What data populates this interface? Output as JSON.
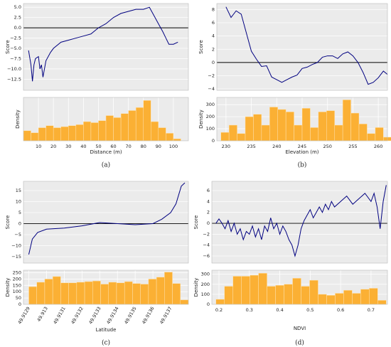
{
  "chart_data": [
    {
      "type": "line",
      "ylabel": "Score",
      "color": "#000080",
      "hline": 0,
      "grid": true,
      "xlim": [
        0,
        110
      ],
      "ylim": [
        -15.2,
        5.9
      ],
      "yticks": [
        {
          "value": -12.5,
          "label": "−12.5"
        },
        {
          "value": -10,
          "label": "−10.0"
        },
        {
          "value": -7.5,
          "label": "−7.5"
        },
        {
          "value": -5,
          "label": "−5.0"
        },
        {
          "value": -2.5,
          "label": "−2.5"
        },
        {
          "value": 0,
          "label": "0.0"
        },
        {
          "value": 2.5,
          "label": "2.5"
        },
        {
          "value": 5,
          "label": "5.0"
        }
      ],
      "x": [
        3.4,
        5,
        6,
        7,
        8,
        10,
        11,
        12,
        13,
        15,
        18,
        20,
        25,
        30,
        35,
        40,
        45,
        50,
        55,
        60,
        65,
        70,
        75,
        80,
        84,
        87,
        90,
        93,
        95,
        97,
        100,
        103
      ],
      "values": [
        -5.5,
        -9,
        -13,
        -9,
        -7.5,
        -7,
        -10,
        -9,
        -12,
        -8,
        -6,
        -5,
        -3.5,
        -3,
        -2.5,
        -2,
        -1.5,
        0,
        1,
        2.5,
        3.5,
        4,
        4.5,
        4.5,
        5,
        3,
        1,
        -1,
        -2.5,
        -4,
        -4,
        -3.5
      ]
    },
    {
      "type": "histogram",
      "ylabel": "Density",
      "xlabel": "Distance (m)",
      "caption": "(a)",
      "color": "#fbb034",
      "grid": true,
      "xlim": [
        0,
        110
      ],
      "ylim": [
        0,
        430
      ],
      "xticks": [
        10,
        20,
        30,
        40,
        50,
        60,
        70,
        80,
        90,
        100
      ],
      "bins": [
        0,
        5,
        10,
        15,
        20,
        25,
        30,
        35,
        40,
        45,
        50,
        55,
        60,
        65,
        70,
        75,
        80,
        85,
        90,
        95,
        100,
        105
      ],
      "values": [
        100,
        80,
        130,
        150,
        130,
        140,
        150,
        160,
        190,
        180,
        200,
        250,
        230,
        270,
        300,
        330,
        400,
        190,
        130,
        75,
        20
      ]
    },
    {
      "type": "line",
      "ylabel": "Score",
      "color": "#000080",
      "hline": 0,
      "grid": true,
      "xlim": [
        228.2,
        261.8
      ],
      "ylim": [
        -4.2,
        8.9
      ],
      "yticks": [
        {
          "value": -4,
          "label": "−4"
        },
        {
          "value": -2,
          "label": "−2"
        },
        0,
        2,
        4,
        6,
        8
      ],
      "x": [
        230,
        231,
        232,
        233,
        234,
        235,
        236,
        237,
        238,
        239,
        240,
        241,
        242,
        243,
        244,
        245,
        246,
        247,
        248,
        249,
        250,
        251,
        252,
        253,
        254,
        255,
        256,
        257,
        258,
        259,
        260,
        261,
        261.8
      ],
      "values": [
        8.4,
        6.8,
        7.8,
        7.3,
        4.5,
        1.7,
        0.5,
        -0.6,
        -0.5,
        -2.2,
        -2.6,
        -3,
        -2.6,
        -2.2,
        -1.9,
        -0.9,
        -0.7,
        -0.3,
        0,
        0.8,
        1,
        1,
        0.6,
        1.3,
        1.6,
        1,
        0,
        -1.5,
        -3.3,
        -3,
        -2.3,
        -1.3,
        -1.8
      ]
    },
    {
      "type": "histogram",
      "ylabel": "Density",
      "xlabel": "Elevation (m)",
      "caption": "(b)",
      "color": "#fbb034",
      "grid": true,
      "xlim": [
        228.2,
        261.8
      ],
      "ylim": [
        0,
        360
      ],
      "xticks": [
        230,
        235,
        240,
        245,
        250,
        255,
        260
      ],
      "yticks": [
        0,
        100,
        200,
        300
      ],
      "bins": [
        229,
        230.6,
        232.2,
        233.8,
        235.4,
        237,
        238.6,
        240.2,
        241.8,
        243.4,
        245,
        246.6,
        248.2,
        249.8,
        251.4,
        253,
        254.6,
        256.2,
        257.8,
        259.4,
        261,
        262.6
      ],
      "values": [
        70,
        130,
        60,
        200,
        220,
        130,
        280,
        260,
        240,
        130,
        270,
        110,
        240,
        250,
        130,
        340,
        230,
        140,
        60,
        110,
        30
      ]
    },
    {
      "type": "line",
      "ylabel": "Score",
      "color": "#000080",
      "hline": 0,
      "grid": true,
      "xlim": [
        49.91287,
        49.9138
      ],
      "ylim": [
        -17.9,
        19.2
      ],
      "yticks": [
        {
          "value": -15,
          "label": "−15"
        },
        {
          "value": -10,
          "label": "−10"
        },
        {
          "value": -5,
          "label": "−5"
        },
        0,
        5,
        10,
        15
      ],
      "x": [
        49.9129,
        49.91292,
        49.91295,
        49.913,
        49.9131,
        49.9132,
        49.9133,
        49.9134,
        49.9135,
        49.9136,
        49.91365,
        49.9137,
        49.91373,
        49.91376,
        49.91378
      ],
      "values": [
        -14,
        -7,
        -4,
        -2.5,
        -2,
        -1,
        0.5,
        0,
        -0.5,
        0,
        2,
        5,
        9,
        17,
        18.5
      ]
    },
    {
      "type": "histogram",
      "ylabel": "Density",
      "xlabel": "Latitude",
      "caption": "(c)",
      "color": "#fbb034",
      "grid": true,
      "xtick_rotation": 60,
      "xlim": [
        49.91287,
        49.9138
      ],
      "ylim": [
        0,
        270
      ],
      "xticks": [
        49.9129,
        49.913,
        49.9131,
        49.9132,
        49.9133,
        49.9134,
        49.9135,
        49.9136,
        49.9137
      ],
      "yticks": [
        0,
        50,
        100,
        150,
        200,
        250
      ],
      "bins": [
        49.9129,
        49.912945,
        49.91299,
        49.913035,
        49.91308,
        49.913125,
        49.91317,
        49.913215,
        49.91326,
        49.913305,
        49.91335,
        49.913395,
        49.91344,
        49.913485,
        49.91353,
        49.913575,
        49.91362,
        49.913665,
        49.91371,
        49.913755,
        49.9138
      ],
      "values": [
        140,
        175,
        200,
        220,
        170,
        170,
        175,
        180,
        185,
        160,
        175,
        170,
        180,
        165,
        160,
        200,
        215,
        255,
        165,
        35
      ]
    },
    {
      "type": "line",
      "ylabel": "Score",
      "color": "#000080",
      "hline": 0,
      "grid": true,
      "xlim": [
        0.1766,
        0.754
      ],
      "ylim": [
        -7.3,
        7.7
      ],
      "yticks": [
        {
          "value": -6,
          "label": "−6"
        },
        {
          "value": -4,
          "label": "−4"
        },
        {
          "value": -2,
          "label": "−2"
        },
        0,
        2,
        4,
        6
      ],
      "x": [
        0.19,
        0.2,
        0.21,
        0.22,
        0.23,
        0.24,
        0.25,
        0.26,
        0.27,
        0.28,
        0.29,
        0.3,
        0.31,
        0.32,
        0.33,
        0.34,
        0.35,
        0.36,
        0.37,
        0.38,
        0.39,
        0.4,
        0.41,
        0.42,
        0.43,
        0.44,
        0.45,
        0.46,
        0.47,
        0.48,
        0.49,
        0.5,
        0.51,
        0.52,
        0.53,
        0.54,
        0.55,
        0.56,
        0.57,
        0.58,
        0.6,
        0.62,
        0.64,
        0.66,
        0.68,
        0.7,
        0.71,
        0.72,
        0.73,
        0.74,
        0.75
      ],
      "values": [
        0,
        0.8,
        0,
        -1,
        0.5,
        -1.5,
        0,
        -2,
        -1,
        -3,
        -1.5,
        -2,
        -0.5,
        -2.5,
        -1,
        -3,
        -0.5,
        -1.5,
        1,
        -1,
        0,
        -2,
        -0.5,
        -1.5,
        -3,
        -4,
        -6,
        -4,
        -1,
        0.5,
        1.5,
        2.5,
        1,
        2,
        3,
        2,
        3.5,
        2.5,
        4,
        3,
        4,
        5,
        3.5,
        4.5,
        5.5,
        4,
        5.5,
        3,
        -1,
        4,
        7
      ]
    },
    {
      "type": "histogram",
      "ylabel": "Density",
      "xlabel": "NDVI",
      "caption": "(d)",
      "color": "#fbb034",
      "grid": true,
      "xlim": [
        0.1766,
        0.754
      ],
      "ylim": [
        0,
        340
      ],
      "xticks": [
        0.2,
        0.3,
        0.4,
        0.5,
        0.6,
        0.7
      ],
      "yticks": [
        0,
        100,
        200,
        300
      ],
      "bins": [
        0.19,
        0.218,
        0.246,
        0.274,
        0.302,
        0.33,
        0.358,
        0.386,
        0.414,
        0.442,
        0.47,
        0.498,
        0.526,
        0.554,
        0.582,
        0.61,
        0.638,
        0.666,
        0.694,
        0.722,
        0.75
      ],
      "values": [
        50,
        180,
        280,
        280,
        290,
        310,
        180,
        190,
        200,
        260,
        180,
        240,
        100,
        90,
        110,
        140,
        110,
        150,
        160,
        40
      ]
    }
  ]
}
